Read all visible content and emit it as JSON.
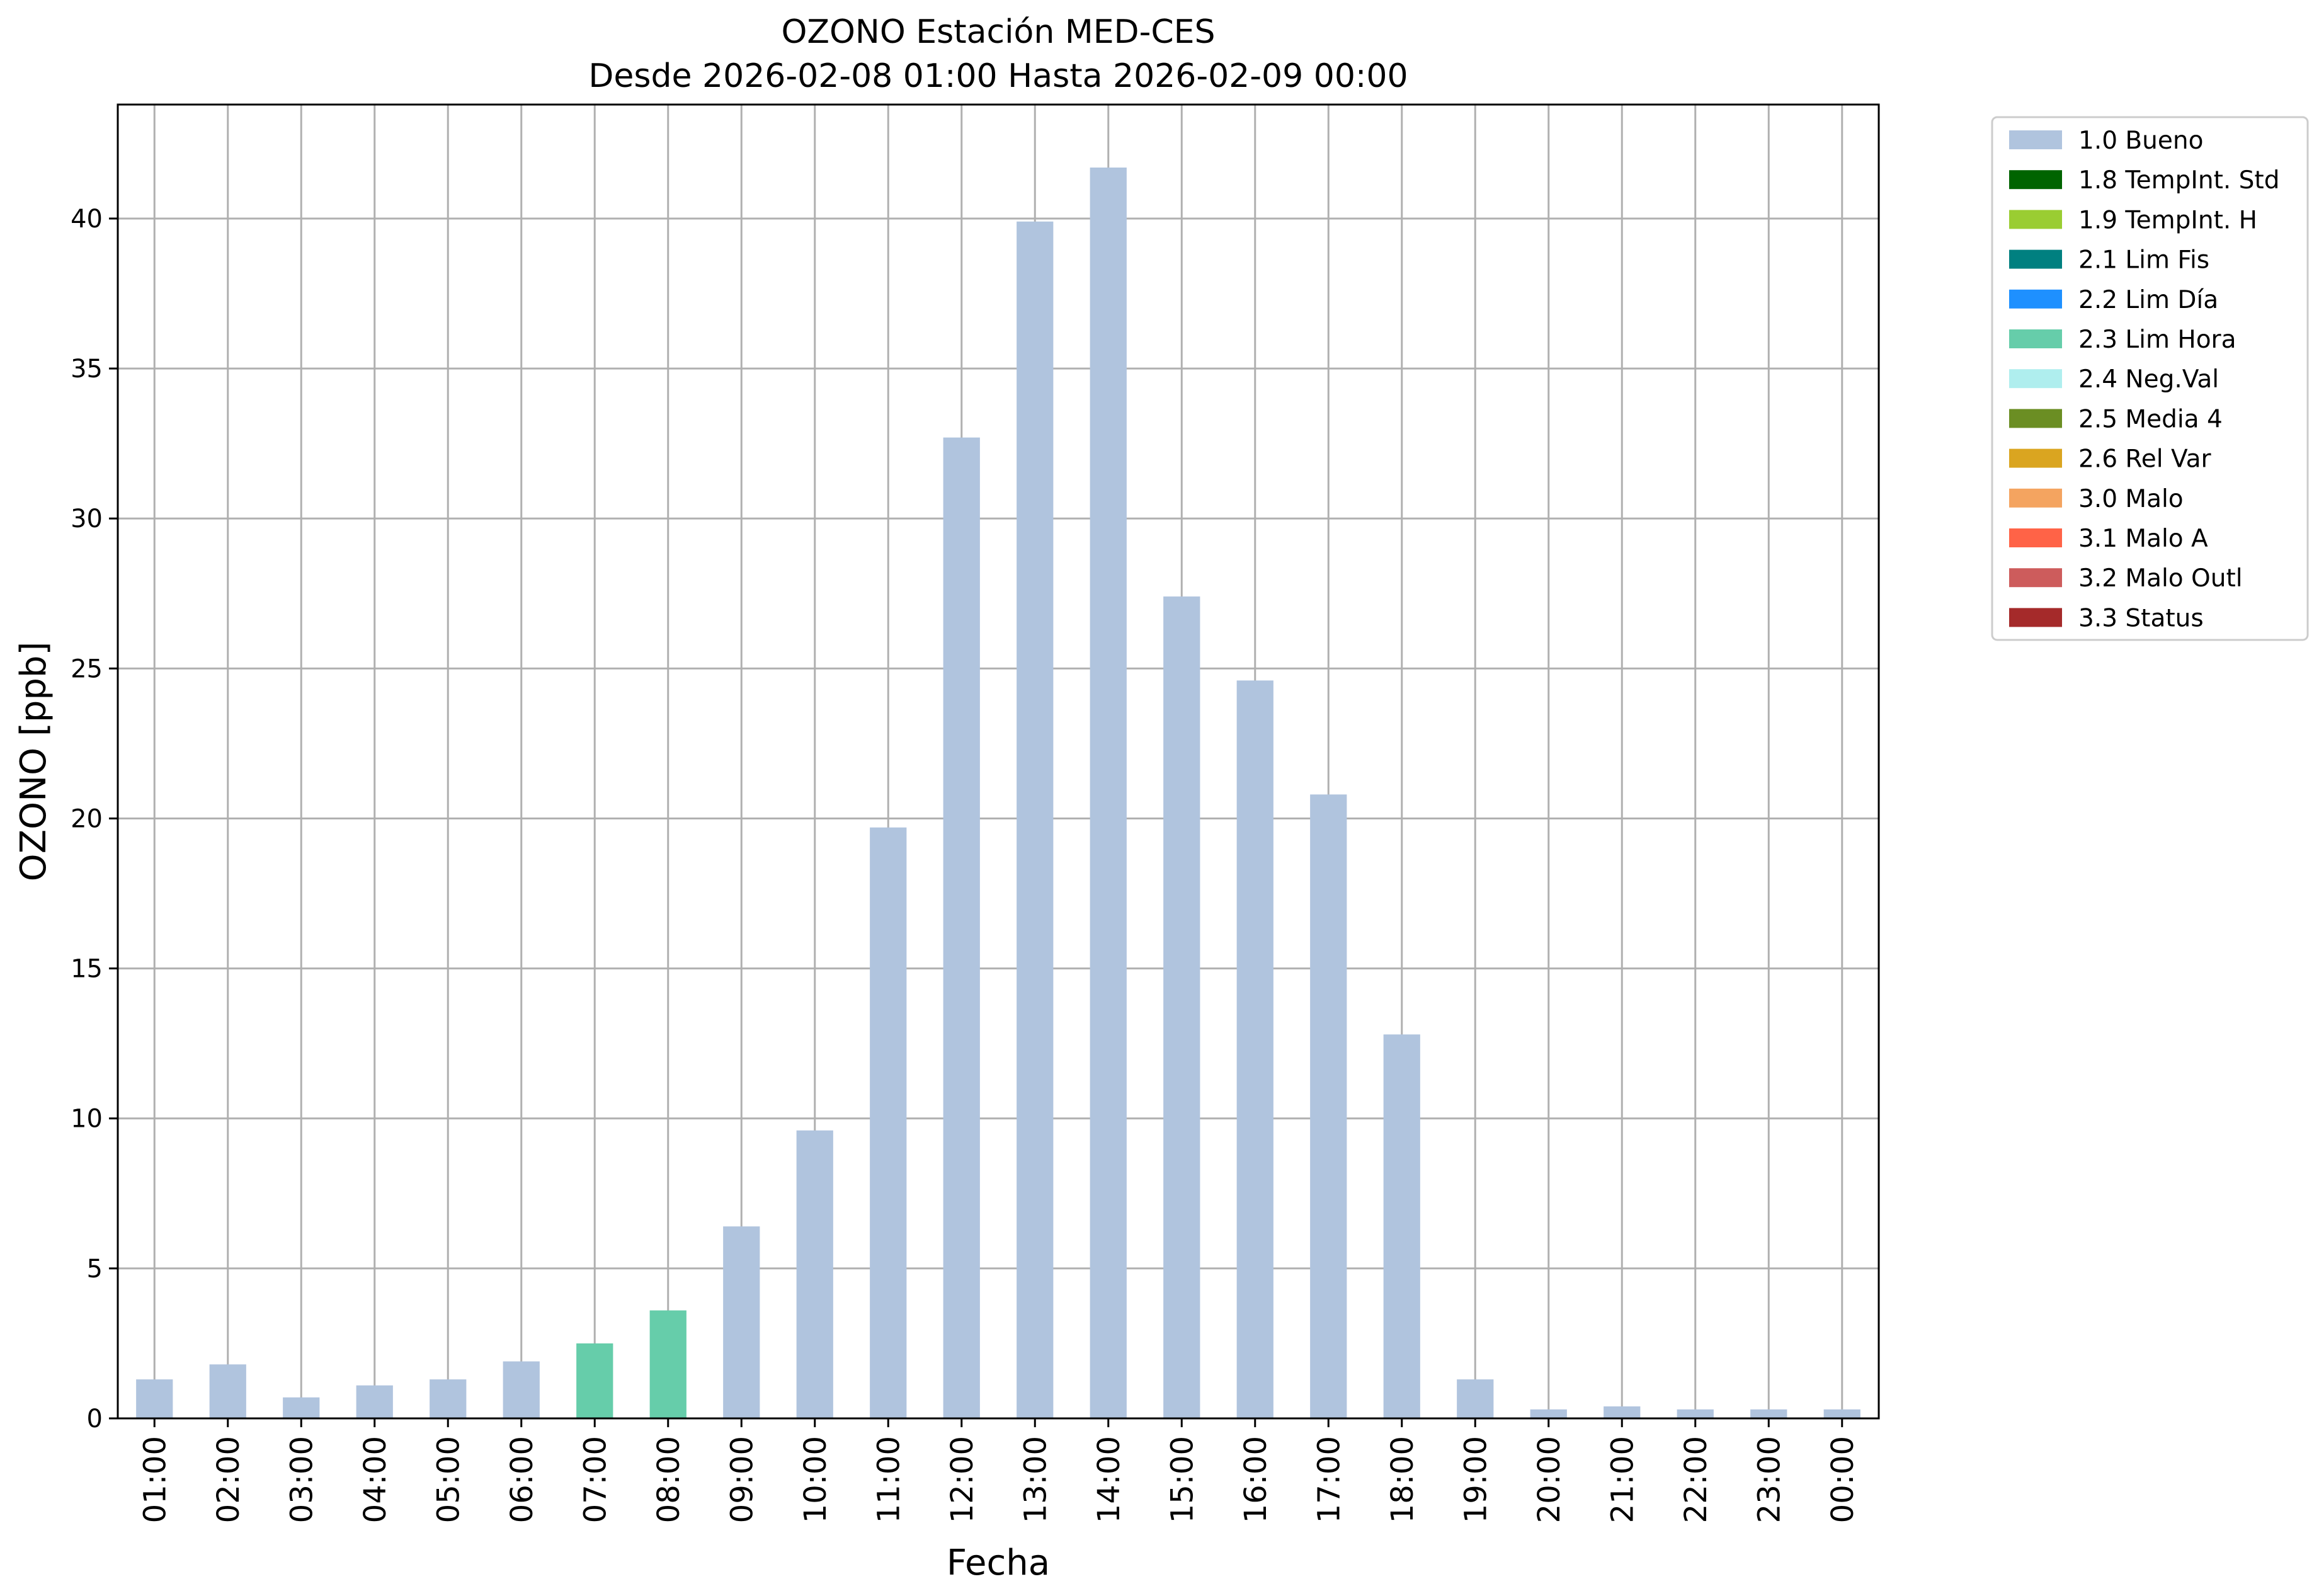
{
  "chart_data": {
    "type": "bar",
    "title": "OZONO Estación MED-CES",
    "subtitle": "Desde 2026-02-08 01:00 Hasta 2026-02-09 00:00",
    "xlabel": "Fecha",
    "ylabel": "OZONO [ppb]",
    "ylim": [
      0,
      43.8
    ],
    "yticks": [
      0,
      5,
      10,
      15,
      20,
      25,
      30,
      35,
      40
    ],
    "grid": true,
    "legend_position": "outside-top-right",
    "categories": [
      "01:00",
      "02:00",
      "03:00",
      "04:00",
      "05:00",
      "06:00",
      "07:00",
      "08:00",
      "09:00",
      "10:00",
      "11:00",
      "12:00",
      "13:00",
      "14:00",
      "15:00",
      "16:00",
      "17:00",
      "18:00",
      "19:00",
      "20:00",
      "21:00",
      "22:00",
      "23:00",
      "00:00"
    ],
    "values": [
      1.3,
      1.8,
      0.7,
      1.1,
      1.3,
      1.9,
      2.5,
      3.6,
      6.4,
      9.6,
      19.7,
      32.7,
      39.9,
      41.7,
      27.4,
      24.6,
      20.8,
      12.8,
      1.3,
      0.3,
      0.4,
      0.3,
      0.3,
      0.3
    ],
    "flags": [
      "1.0",
      "1.0",
      "1.0",
      "1.0",
      "1.0",
      "1.0",
      "2.3",
      "2.3",
      "1.0",
      "1.0",
      "1.0",
      "1.0",
      "1.0",
      "1.0",
      "1.0",
      "1.0",
      "1.0",
      "1.0",
      "1.0",
      "1.0",
      "1.0",
      "1.0",
      "1.0",
      "1.0"
    ],
    "legend": [
      {
        "code": "1.0",
        "label": "1.0 Bueno",
        "color": "#b0c4de"
      },
      {
        "code": "1.8",
        "label": "1.8 TempInt. Std",
        "color": "#006400"
      },
      {
        "code": "1.9",
        "label": "1.9 TempInt. H",
        "color": "#9acd32"
      },
      {
        "code": "2.1",
        "label": "2.1 Lim Fis",
        "color": "#008080"
      },
      {
        "code": "2.2",
        "label": "2.2 Lim Día",
        "color": "#1e90ff"
      },
      {
        "code": "2.3",
        "label": "2.3 Lim Hora",
        "color": "#66cdaa"
      },
      {
        "code": "2.4",
        "label": "2.4 Neg.Val",
        "color": "#afeeee"
      },
      {
        "code": "2.5",
        "label": "2.5 Media 4",
        "color": "#6b8e23"
      },
      {
        "code": "2.6",
        "label": "2.6 Rel Var",
        "color": "#daa520"
      },
      {
        "code": "3.0",
        "label": "3.0 Malo",
        "color": "#f4a460"
      },
      {
        "code": "3.1",
        "label": "3.1 Malo A",
        "color": "#ff6347"
      },
      {
        "code": "3.2",
        "label": "3.2 Malo Outl",
        "color": "#cd5c5c"
      },
      {
        "code": "3.3",
        "label": "3.3 Status",
        "color": "#a52a2a"
      }
    ]
  }
}
